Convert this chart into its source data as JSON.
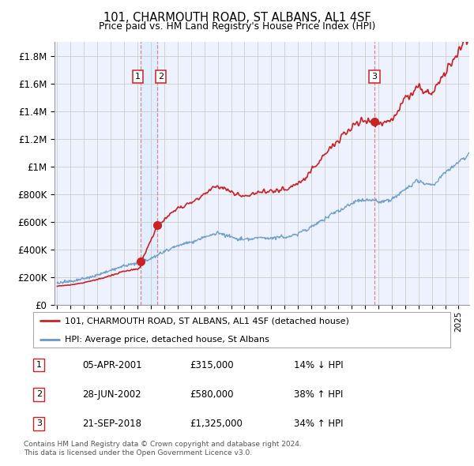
{
  "title": "101, CHARMOUTH ROAD, ST ALBANS, AL1 4SF",
  "subtitle": "Price paid vs. HM Land Registry's House Price Index (HPI)",
  "ylabel_ticks": [
    "£0",
    "£200K",
    "£400K",
    "£600K",
    "£800K",
    "£1M",
    "£1.2M",
    "£1.4M",
    "£1.6M",
    "£1.8M"
  ],
  "ytick_values": [
    0,
    200000,
    400000,
    600000,
    800000,
    1000000,
    1200000,
    1400000,
    1600000,
    1800000
  ],
  "ylim": [
    0,
    1900000
  ],
  "xlim_start": 1994.8,
  "xlim_end": 2025.8,
  "transaction_dates": [
    2001.26,
    2002.49,
    2018.72
  ],
  "transaction_prices": [
    315000,
    580000,
    1325000
  ],
  "transaction_labels": [
    "1",
    "2",
    "3"
  ],
  "legend_line1": "101, CHARMOUTH ROAD, ST ALBANS, AL1 4SF (detached house)",
  "legend_line2": "HPI: Average price, detached house, St Albans",
  "table_rows": [
    {
      "num": "1",
      "date": "05-APR-2001",
      "price": "£315,000",
      "change": "14% ↓ HPI"
    },
    {
      "num": "2",
      "date": "28-JUN-2002",
      "price": "£580,000",
      "change": "38% ↑ HPI"
    },
    {
      "num": "3",
      "date": "21-SEP-2018",
      "price": "£1,325,000",
      "change": "34% ↑ HPI"
    }
  ],
  "footer": "Contains HM Land Registry data © Crown copyright and database right 2024.\nThis data is licensed under the Open Government Licence v3.0.",
  "hpi_color": "#6699cc",
  "price_color": "#cc2222",
  "vline_color": "#dd8888",
  "shade_color": "#ddeeff",
  "grid_color": "#cccccc",
  "background_color": "#ffffff",
  "plot_bg_color": "#eef2ff"
}
